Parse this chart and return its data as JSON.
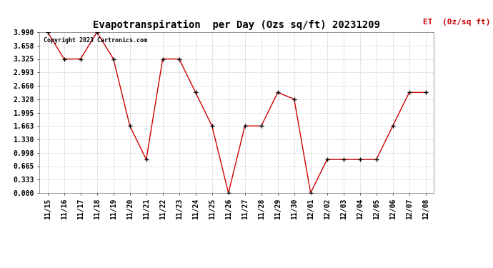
{
  "title": "Evapotranspiration  per Day (Ozs sq/ft) 20231209",
  "legend_label": "ET  (0z/sq ft)",
  "copyright_text": "Copyright 2023 Cartronics.com",
  "x_labels": [
    "11/15",
    "11/16",
    "11/17",
    "11/18",
    "11/19",
    "11/20",
    "11/21",
    "11/22",
    "11/23",
    "11/24",
    "11/25",
    "11/26",
    "11/27",
    "11/28",
    "11/29",
    "11/30",
    "12/01",
    "12/02",
    "12/03",
    "12/04",
    "12/05",
    "12/06",
    "12/07",
    "12/08"
  ],
  "y_values": [
    3.99,
    3.325,
    3.325,
    3.99,
    3.325,
    1.663,
    0.83,
    3.325,
    3.325,
    2.494,
    1.663,
    0.0,
    1.663,
    1.663,
    2.494,
    2.328,
    0.0,
    0.83,
    0.83,
    0.83,
    0.83,
    1.663,
    2.494,
    2.494
  ],
  "y_ticks": [
    0.0,
    0.333,
    0.665,
    0.998,
    1.33,
    1.663,
    1.995,
    2.328,
    2.66,
    2.993,
    3.325,
    3.658,
    3.99
  ],
  "line_color": "#cc0000",
  "marker_color": "#000000",
  "background_color": "#ffffff",
  "grid_color": "#cccccc",
  "title_color": "#000000",
  "legend_color": "#cc0000",
  "copyright_color": "#000000",
  "ylim": [
    0.0,
    3.99
  ],
  "title_fontsize": 10,
  "tick_fontsize": 7,
  "legend_fontsize": 8,
  "copyright_fontsize": 6
}
